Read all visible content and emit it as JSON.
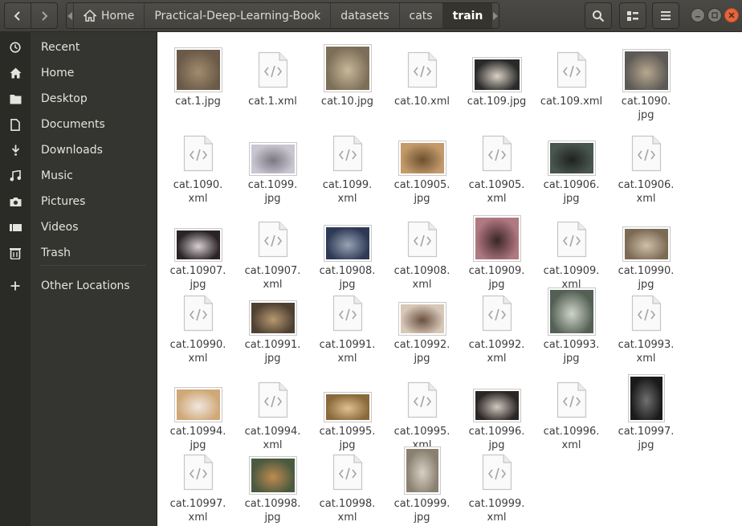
{
  "header": {
    "breadcrumbs": [
      "Home",
      "Practical-Deep-Learning-Book",
      "datasets",
      "cats",
      "train"
    ],
    "active_crumb": "train",
    "icons": {
      "back": "chevron-left-icon",
      "forward": "chevron-right-icon",
      "search": "search-icon",
      "view": "list-view-icon",
      "menu": "hamburger-menu-icon"
    }
  },
  "sidebar": {
    "items": [
      {
        "label": "Recent",
        "icon": "clock-icon"
      },
      {
        "label": "Home",
        "icon": "home-icon"
      },
      {
        "label": "Desktop",
        "icon": "folder-icon"
      },
      {
        "label": "Documents",
        "icon": "document-icon"
      },
      {
        "label": "Downloads",
        "icon": "download-icon"
      },
      {
        "label": "Music",
        "icon": "music-icon"
      },
      {
        "label": "Pictures",
        "icon": "camera-icon"
      },
      {
        "label": "Videos",
        "icon": "video-icon"
      },
      {
        "label": "Trash",
        "icon": "trash-icon"
      },
      {
        "label": "Other Locations",
        "icon": "plus-icon"
      }
    ]
  },
  "files": [
    {
      "line1": "cat.1.jpg",
      "line2": "",
      "type": "jpg"
    },
    {
      "line1": "cat.1.xml",
      "line2": "",
      "type": "xml"
    },
    {
      "line1": "cat.10.jpg",
      "line2": "",
      "type": "jpg"
    },
    {
      "line1": "cat.10.xml",
      "line2": "",
      "type": "xml"
    },
    {
      "line1": "cat.109.jpg",
      "line2": "",
      "type": "jpg"
    },
    {
      "line1": "cat.109.xml",
      "line2": "",
      "type": "xml"
    },
    {
      "line1": "cat.1090.",
      "line2": "jpg",
      "type": "jpg"
    },
    {
      "line1": "cat.1090.",
      "line2": "xml",
      "type": "xml"
    },
    {
      "line1": "cat.1099.",
      "line2": "jpg",
      "type": "jpg"
    },
    {
      "line1": "cat.1099.",
      "line2": "xml",
      "type": "xml"
    },
    {
      "line1": "cat.10905.",
      "line2": "jpg",
      "type": "jpg"
    },
    {
      "line1": "cat.10905.",
      "line2": "xml",
      "type": "xml"
    },
    {
      "line1": "cat.10906.",
      "line2": "jpg",
      "type": "jpg"
    },
    {
      "line1": "cat.10906.",
      "line2": "xml",
      "type": "xml"
    },
    {
      "line1": "cat.10907.",
      "line2": "jpg",
      "type": "jpg"
    },
    {
      "line1": "cat.10907.",
      "line2": "xml",
      "type": "xml"
    },
    {
      "line1": "cat.10908.",
      "line2": "jpg",
      "type": "jpg"
    },
    {
      "line1": "cat.10908.",
      "line2": "xml",
      "type": "xml"
    },
    {
      "line1": "cat.10909.",
      "line2": "jpg",
      "type": "jpg"
    },
    {
      "line1": "cat.10909.",
      "line2": "xml",
      "type": "xml"
    },
    {
      "line1": "cat.10990.",
      "line2": "jpg",
      "type": "jpg"
    },
    {
      "line1": "cat.10990.",
      "line2": "xml",
      "type": "xml"
    },
    {
      "line1": "cat.10991.",
      "line2": "jpg",
      "type": "jpg"
    },
    {
      "line1": "cat.10991.",
      "line2": "xml",
      "type": "xml"
    },
    {
      "line1": "cat.10992.",
      "line2": "jpg",
      "type": "jpg"
    },
    {
      "line1": "cat.10992.",
      "line2": "xml",
      "type": "xml"
    },
    {
      "line1": "cat.10993.",
      "line2": "jpg",
      "type": "jpg"
    },
    {
      "line1": "cat.10993.",
      "line2": "xml",
      "type": "xml"
    },
    {
      "line1": "cat.10994.",
      "line2": "jpg",
      "type": "jpg"
    },
    {
      "line1": "cat.10994.",
      "line2": "xml",
      "type": "xml"
    },
    {
      "line1": "cat.10995.",
      "line2": "jpg",
      "type": "jpg"
    },
    {
      "line1": "cat.10995.",
      "line2": "xml",
      "type": "xml"
    },
    {
      "line1": "cat.10996.",
      "line2": "jpg",
      "type": "jpg"
    },
    {
      "line1": "cat.10996.",
      "line2": "xml",
      "type": "xml"
    },
    {
      "line1": "cat.10997.",
      "line2": "jpg",
      "type": "jpg"
    },
    {
      "line1": "cat.10997.",
      "line2": "xml",
      "type": "xml"
    },
    {
      "line1": "cat.10998.",
      "line2": "jpg",
      "type": "jpg"
    },
    {
      "line1": "cat.10998.",
      "line2": "xml",
      "type": "xml"
    },
    {
      "line1": "cat.10999.",
      "line2": "jpg",
      "type": "jpg"
    },
    {
      "line1": "cat.10999.",
      "line2": "xml",
      "type": "xml"
    }
  ],
  "colors": {
    "header_bg": "#43423e",
    "sidebar_bg": "#343430",
    "sidebar_text": "#e6e3dc",
    "window_close": "#e9643a",
    "file_label": "#3c3c3c"
  }
}
